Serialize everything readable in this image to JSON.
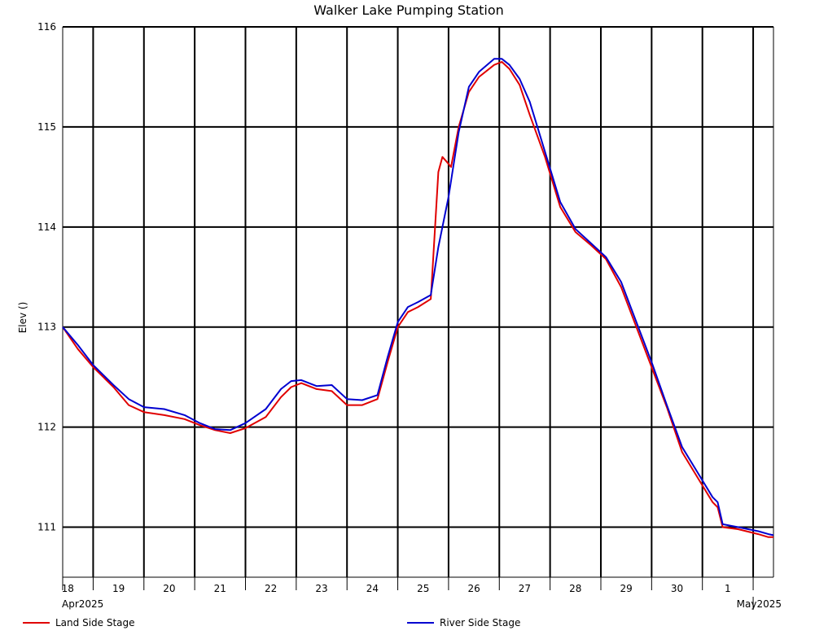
{
  "chart_data": {
    "type": "line",
    "title": "Walker Lake Pumping Station",
    "ylabel": "Elev ()",
    "xlabel": "",
    "ylim": [
      110.5,
      116
    ],
    "yticks": [
      "111",
      "112",
      "113",
      "114",
      "115",
      "116"
    ],
    "ytick_values": [
      111,
      112,
      113,
      114,
      115,
      116
    ],
    "xlim": [
      0,
      14
    ],
    "day_ticks": [
      {
        "x": 0,
        "label": "18"
      },
      {
        "x": 1,
        "label": "19"
      },
      {
        "x": 2,
        "label": "20"
      },
      {
        "x": 3,
        "label": "21"
      },
      {
        "x": 4,
        "label": "22"
      },
      {
        "x": 5,
        "label": "23"
      },
      {
        "x": 6,
        "label": "24"
      },
      {
        "x": 7,
        "label": "25"
      },
      {
        "x": 8,
        "label": "26"
      },
      {
        "x": 9,
        "label": "27"
      },
      {
        "x": 10,
        "label": "28"
      },
      {
        "x": 11,
        "label": "29"
      },
      {
        "x": 12,
        "label": "30"
      },
      {
        "x": 13,
        "label": "1"
      }
    ],
    "month_labels": [
      {
        "x": 0,
        "label": "Apr2025",
        "anchor": "start"
      },
      {
        "x": 14,
        "label": "May2025",
        "anchor": "end"
      }
    ],
    "month_boundary_x": 13,
    "legend": "bottom",
    "grid": true,
    "series": [
      {
        "name": "Land Side Stage",
        "color": "#e00000",
        "points": [
          [
            0,
            113.0
          ],
          [
            0.3,
            112.78
          ],
          [
            0.6,
            112.6
          ],
          [
            1.0,
            112.4
          ],
          [
            1.3,
            112.22
          ],
          [
            1.6,
            112.15
          ],
          [
            2.0,
            112.12
          ],
          [
            2.4,
            112.08
          ],
          [
            2.7,
            112.02
          ],
          [
            3.0,
            111.97
          ],
          [
            3.3,
            111.94
          ],
          [
            3.6,
            111.99
          ],
          [
            4.0,
            112.1
          ],
          [
            4.3,
            112.3
          ],
          [
            4.5,
            112.4
          ],
          [
            4.7,
            112.44
          ],
          [
            5.0,
            112.38
          ],
          [
            5.3,
            112.36
          ],
          [
            5.6,
            112.22
          ],
          [
            5.9,
            112.22
          ],
          [
            6.2,
            112.28
          ],
          [
            6.4,
            112.65
          ],
          [
            6.6,
            113.0
          ],
          [
            6.8,
            113.15
          ],
          [
            7.0,
            113.2
          ],
          [
            7.25,
            113.28
          ],
          [
            7.4,
            114.55
          ],
          [
            7.48,
            114.7
          ],
          [
            7.55,
            114.66
          ],
          [
            7.65,
            114.6
          ],
          [
            7.8,
            115.0
          ],
          [
            8.0,
            115.35
          ],
          [
            8.2,
            115.5
          ],
          [
            8.5,
            115.62
          ],
          [
            8.65,
            115.65
          ],
          [
            8.8,
            115.58
          ],
          [
            9.0,
            115.42
          ],
          [
            9.2,
            115.12
          ],
          [
            9.5,
            114.7
          ],
          [
            9.8,
            114.2
          ],
          [
            10.1,
            113.95
          ],
          [
            10.4,
            113.82
          ],
          [
            10.7,
            113.68
          ],
          [
            11.0,
            113.4
          ],
          [
            11.3,
            113.0
          ],
          [
            11.6,
            112.6
          ],
          [
            11.9,
            112.2
          ],
          [
            12.2,
            111.75
          ],
          [
            12.5,
            111.5
          ],
          [
            12.8,
            111.25
          ],
          [
            12.9,
            111.2
          ],
          [
            13.0,
            111.0
          ],
          [
            13.3,
            110.98
          ],
          [
            13.7,
            110.93
          ],
          [
            13.9,
            110.9
          ],
          [
            14.0,
            110.9
          ]
        ]
      },
      {
        "name": "River Side Stage",
        "color": "#0000d0",
        "points": [
          [
            0,
            113.0
          ],
          [
            0.3,
            112.82
          ],
          [
            0.6,
            112.62
          ],
          [
            1.0,
            112.42
          ],
          [
            1.3,
            112.28
          ],
          [
            1.6,
            112.2
          ],
          [
            2.0,
            112.18
          ],
          [
            2.4,
            112.12
          ],
          [
            2.7,
            112.04
          ],
          [
            3.0,
            111.98
          ],
          [
            3.3,
            111.97
          ],
          [
            3.6,
            112.04
          ],
          [
            4.0,
            112.18
          ],
          [
            4.3,
            112.38
          ],
          [
            4.5,
            112.46
          ],
          [
            4.7,
            112.47
          ],
          [
            5.0,
            112.41
          ],
          [
            5.3,
            112.42
          ],
          [
            5.6,
            112.28
          ],
          [
            5.9,
            112.27
          ],
          [
            6.2,
            112.32
          ],
          [
            6.4,
            112.7
          ],
          [
            6.6,
            113.05
          ],
          [
            6.8,
            113.2
          ],
          [
            7.0,
            113.25
          ],
          [
            7.25,
            113.32
          ],
          [
            7.4,
            113.8
          ],
          [
            7.6,
            114.3
          ],
          [
            7.8,
            114.95
          ],
          [
            8.0,
            115.4
          ],
          [
            8.2,
            115.55
          ],
          [
            8.5,
            115.68
          ],
          [
            8.65,
            115.68
          ],
          [
            8.8,
            115.62
          ],
          [
            9.0,
            115.48
          ],
          [
            9.2,
            115.25
          ],
          [
            9.5,
            114.75
          ],
          [
            9.8,
            114.25
          ],
          [
            10.1,
            113.98
          ],
          [
            10.4,
            113.84
          ],
          [
            10.7,
            113.7
          ],
          [
            11.0,
            113.45
          ],
          [
            11.3,
            113.05
          ],
          [
            11.6,
            112.65
          ],
          [
            11.9,
            112.22
          ],
          [
            12.2,
            111.8
          ],
          [
            12.5,
            111.55
          ],
          [
            12.8,
            111.3
          ],
          [
            12.9,
            111.25
          ],
          [
            13.0,
            111.03
          ],
          [
            13.3,
            111.0
          ],
          [
            13.7,
            110.96
          ],
          [
            13.9,
            110.93
          ],
          [
            14.0,
            110.92
          ]
        ]
      }
    ]
  }
}
